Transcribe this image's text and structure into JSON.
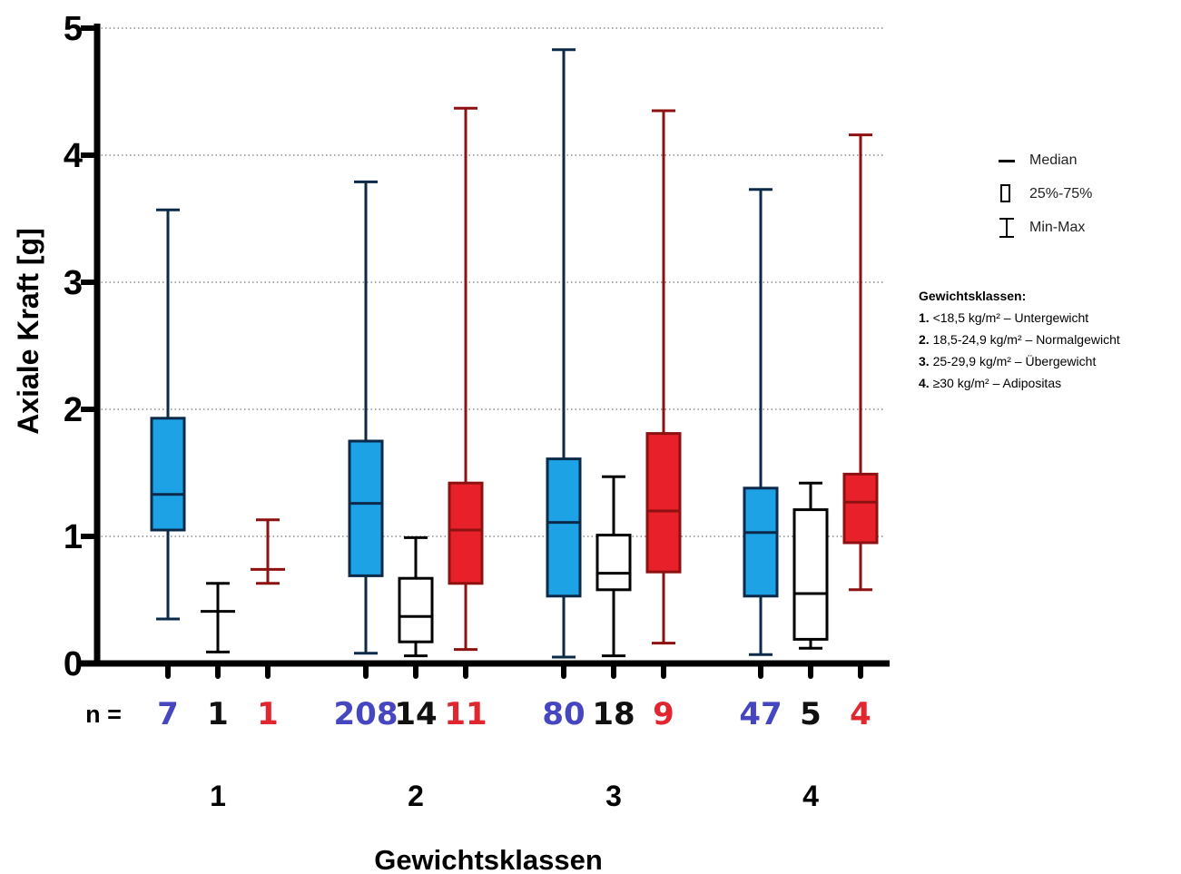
{
  "chart_data": {
    "type": "box",
    "ylabel": "Axiale Kraft [g]",
    "xlabel": "Gewichtsklassen",
    "ylim": [
      0,
      5
    ],
    "yticks": [
      0,
      1,
      2,
      3,
      4,
      5
    ],
    "grid": "horizontal dotted",
    "n_label": "n =",
    "colors": {
      "blue_fill": "#1ea2e6",
      "blue_line": "#0b2a4a",
      "black_line": "#000000",
      "red_fill": "#e8202a",
      "red_line": "#8e1111",
      "n_blue": "#4646c0",
      "n_black": "#111111",
      "n_red": "#e0262e"
    },
    "groups": [
      {
        "label": "1",
        "boxes": [
          {
            "color": "blue",
            "n": "7",
            "min": 0.35,
            "q1": 1.05,
            "median": 1.33,
            "q3": 1.93,
            "max": 3.57
          },
          {
            "color": "black",
            "n": "1",
            "min": 0.09,
            "q1": 0.41,
            "median": 0.41,
            "q3": 0.41,
            "max": 0.63
          },
          {
            "color": "red",
            "n": "1",
            "min": 0.63,
            "q1": 0.74,
            "median": 0.74,
            "q3": 0.74,
            "max": 1.13
          }
        ]
      },
      {
        "label": "2",
        "boxes": [
          {
            "color": "blue",
            "n": "208",
            "min": 0.08,
            "q1": 0.69,
            "median": 1.26,
            "q3": 1.75,
            "max": 3.79
          },
          {
            "color": "black",
            "n": "14",
            "min": 0.06,
            "q1": 0.17,
            "median": 0.37,
            "q3": 0.67,
            "max": 0.99
          },
          {
            "color": "red",
            "n": "11",
            "min": 0.11,
            "q1": 0.63,
            "median": 1.05,
            "q3": 1.42,
            "max": 4.37
          }
        ]
      },
      {
        "label": "3",
        "boxes": [
          {
            "color": "blue",
            "n": "80",
            "min": 0.05,
            "q1": 0.53,
            "median": 1.11,
            "q3": 1.61,
            "max": 4.83
          },
          {
            "color": "black",
            "n": "18",
            "min": 0.06,
            "q1": 0.58,
            "median": 0.71,
            "q3": 1.01,
            "max": 1.47
          },
          {
            "color": "red",
            "n": "9",
            "min": 0.16,
            "q1": 0.72,
            "median": 1.2,
            "q3": 1.81,
            "max": 4.35
          }
        ]
      },
      {
        "label": "4",
        "boxes": [
          {
            "color": "blue",
            "n": "47",
            "min": 0.07,
            "q1": 0.53,
            "median": 1.03,
            "q3": 1.38,
            "max": 3.73
          },
          {
            "color": "black",
            "n": "5",
            "min": 0.12,
            "q1": 0.19,
            "median": 0.55,
            "q3": 1.21,
            "max": 1.42
          },
          {
            "color": "red",
            "n": "4",
            "min": 0.58,
            "q1": 0.95,
            "median": 1.27,
            "q3": 1.49,
            "max": 4.16
          }
        ]
      }
    ]
  },
  "legend": {
    "median": "Median",
    "iqr": "25%-75%",
    "minmax": "Min-Max"
  },
  "classes": {
    "title": "Gewichtsklassen:",
    "items": [
      {
        "num": "1.",
        "text": " <18,5 kg/m² – Untergewicht"
      },
      {
        "num": "2.",
        "text": " 18,5-24,9 kg/m² – Normalgewicht"
      },
      {
        "num": "3.",
        "text": " 25-29,9 kg/m² – Übergewicht"
      },
      {
        "num": "4.",
        "text": " ≥30 kg/m² – Adipositas"
      }
    ]
  }
}
